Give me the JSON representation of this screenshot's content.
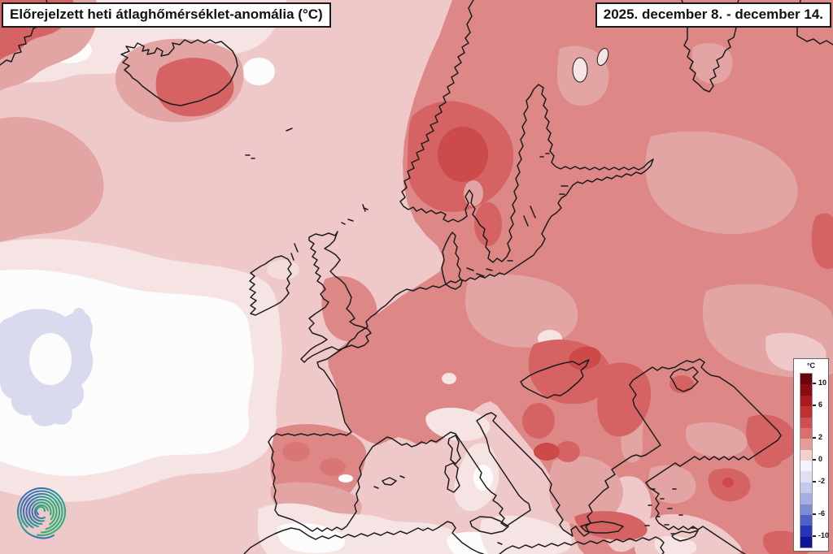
{
  "header": {
    "title": "Előrejelzett heti átlaghőmérséklet-anomália (°C)",
    "date_range": "2025. december 8. - december 14."
  },
  "legend": {
    "unit_label": "°C",
    "ticks": [
      {
        "label": "10",
        "band_index": 1
      },
      {
        "label": "6",
        "band_index": 3
      },
      {
        "label": "2",
        "band_index": 6
      },
      {
        "label": "0",
        "band_index": 8
      },
      {
        "label": "-2",
        "band_index": 10
      },
      {
        "label": "-6",
        "band_index": 13
      },
      {
        "label": "-10",
        "band_index": 15
      }
    ],
    "band_values_top_to_bottom": [
      ">10",
      "8–10",
      "6–8",
      "4–6",
      "3–4",
      "2–3",
      "1–2",
      "0–1",
      "-1–0",
      "-2–-1",
      "-3–-2",
      "-4–-3",
      "-6–-4",
      "-8–-6",
      "-10–-8",
      "<-10"
    ],
    "band_colors": [
      "#68060f",
      "#8a0c12",
      "#a81a1d",
      "#c13030",
      "#cd4f4f",
      "#d96f6f",
      "#e69c9c",
      "#f3cfcf",
      "#f4f3fb",
      "#e0e0f4",
      "#c6c9ec",
      "#a6aee1",
      "#7e8cd6",
      "#4f60c8",
      "#2536b5",
      "#0f1595"
    ]
  },
  "map": {
    "logo": "spiral-logo",
    "palette": {
      "base": "#efc9c9",
      "vlight": "#f6e4e4",
      "white": "#fdfcfc",
      "blue": "#d9daee",
      "med_pink": "#e3a4a4",
      "med_red": "#dd8787",
      "dark_red": "#d56363",
      "darkest_red": "#cc4a4a",
      "spot_red": "#d87676",
      "coast": "#1c1c1c",
      "logo_green": "#2fb277",
      "logo_teal": "#2a9d8f",
      "logo_blue": "#3f6fb5"
    }
  }
}
